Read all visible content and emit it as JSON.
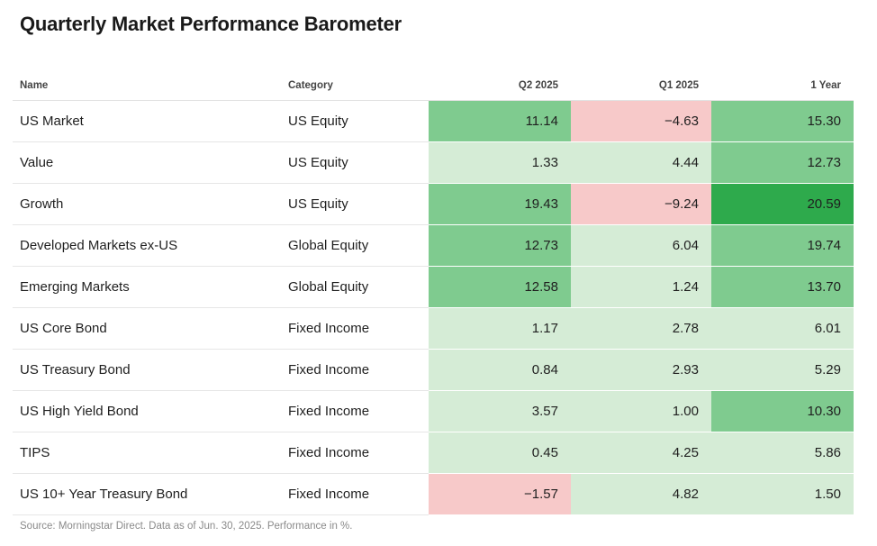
{
  "chart_data": {
    "type": "table",
    "title": "Quarterly Market Performance Barometer",
    "columns": [
      "Name",
      "Category",
      "Q2 2025",
      "Q1 2025",
      "1 Year"
    ],
    "rows": [
      {
        "name": "US Market",
        "category": "US Equity",
        "q2_2025": "11.14",
        "q1_2025": "−4.63",
        "one_year": "15.30"
      },
      {
        "name": "Value",
        "category": "US Equity",
        "q2_2025": "1.33",
        "q1_2025": "4.44",
        "one_year": "12.73"
      },
      {
        "name": "Growth",
        "category": "US Equity",
        "q2_2025": "19.43",
        "q1_2025": "−9.24",
        "one_year": "20.59"
      },
      {
        "name": "Developed Markets ex-US",
        "category": "Global Equity",
        "q2_2025": "12.73",
        "q1_2025": "6.04",
        "one_year": "19.74"
      },
      {
        "name": "Emerging Markets",
        "category": "Global Equity",
        "q2_2025": "12.58",
        "q1_2025": "1.24",
        "one_year": "13.70"
      },
      {
        "name": "US Core Bond",
        "category": "Fixed Income",
        "q2_2025": "1.17",
        "q1_2025": "2.78",
        "one_year": "6.01"
      },
      {
        "name": "US Treasury Bond",
        "category": "Fixed Income",
        "q2_2025": "0.84",
        "q1_2025": "2.93",
        "one_year": "5.29"
      },
      {
        "name": "US High Yield Bond",
        "category": "Fixed Income",
        "q2_2025": "3.57",
        "q1_2025": "1.00",
        "one_year": "10.30"
      },
      {
        "name": "TIPS",
        "category": "Fixed Income",
        "q2_2025": "0.45",
        "q1_2025": "4.25",
        "one_year": "5.86"
      },
      {
        "name": "US 10+ Year Treasury Bond",
        "category": "Fixed Income",
        "q2_2025": "−1.57",
        "q1_2025": "4.82",
        "one_year": "1.50"
      }
    ],
    "colors": {
      "negative": "#f7c9c9",
      "low_positive": "#d5ecd6",
      "mid_positive": "#7fcb8f",
      "high_positive": "#2eaa4c"
    }
  },
  "source": "Source: Morningstar Direct. Data as of Jun. 30, 2025. Performance in %."
}
